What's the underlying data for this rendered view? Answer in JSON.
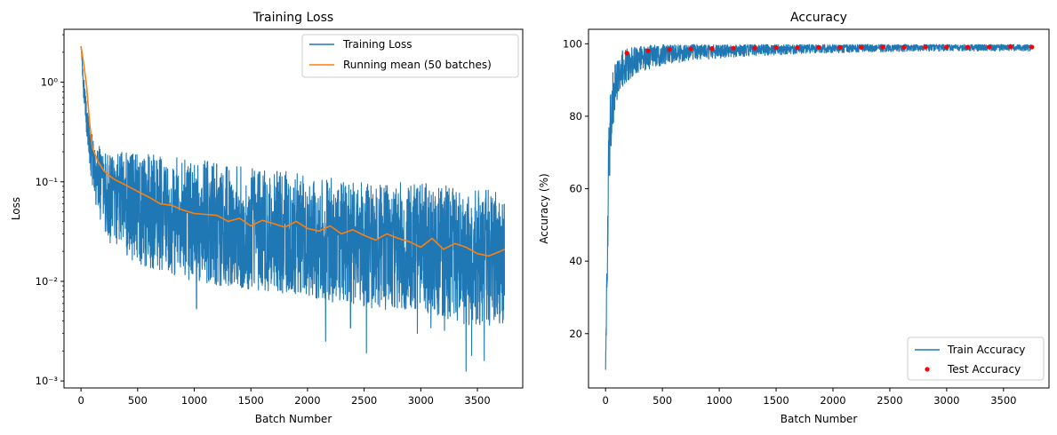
{
  "chart_data": [
    {
      "type": "line",
      "title": "Training Loss",
      "xlabel": "Batch Number",
      "ylabel": "Loss",
      "xlim": [
        -150,
        3900
      ],
      "ylim": [
        0.00085,
        3.4
      ],
      "yscale": "log",
      "grid": false,
      "legend_position": "top-right",
      "x_ticks": [
        0,
        500,
        1000,
        1500,
        2000,
        2500,
        3000,
        3500
      ],
      "x_tick_labels": [
        "0",
        "500",
        "1000",
        "1500",
        "2000",
        "2500",
        "3000",
        "3500"
      ],
      "y_ticks": [
        0.001,
        0.01,
        0.1,
        1
      ],
      "y_tick_labels": [
        "10⁻³",
        "10⁻²",
        "10⁻¹",
        "10⁰"
      ],
      "colors": {
        "training": "#1f77b4",
        "running": "#ff7f0e"
      },
      "series": [
        {
          "name": "Training Loss",
          "kind": "noisy-band",
          "x": [
            0,
            20,
            50,
            80,
            120,
            200,
            300,
            500,
            750,
            1000,
            1250,
            1500,
            1750,
            2000,
            2250,
            2500,
            2750,
            3000,
            3250,
            3500,
            3740
          ],
          "center": [
            2.3,
            1.0,
            0.45,
            0.25,
            0.15,
            0.1,
            0.08,
            0.065,
            0.055,
            0.045,
            0.04,
            0.037,
            0.034,
            0.032,
            0.029,
            0.027,
            0.026,
            0.024,
            0.022,
            0.021,
            0.02
          ],
          "upper": [
            2.3,
            1.2,
            0.6,
            0.35,
            0.26,
            0.22,
            0.2,
            0.2,
            0.18,
            0.17,
            0.15,
            0.14,
            0.13,
            0.12,
            0.11,
            0.1,
            0.1,
            0.1,
            0.09,
            0.085,
            0.08
          ],
          "lower": [
            2.3,
            0.7,
            0.28,
            0.12,
            0.06,
            0.03,
            0.02,
            0.015,
            0.012,
            0.01,
            0.009,
            0.008,
            0.0075,
            0.007,
            0.006,
            0.0055,
            0.005,
            0.005,
            0.004,
            0.0035,
            0.0035
          ],
          "spikes_down": [
            [
              1020,
              0.0053
            ],
            [
              2160,
              0.0025
            ],
            [
              2380,
              0.0034
            ],
            [
              2520,
              0.0019
            ],
            [
              2970,
              0.003
            ],
            [
              3090,
              0.0034
            ],
            [
              3210,
              0.0032
            ],
            [
              3400,
              0.00125
            ],
            [
              3450,
              0.0018
            ],
            [
              3560,
              0.0016
            ]
          ]
        },
        {
          "name": "Running mean (50 batches)",
          "kind": "line",
          "x": [
            0,
            25,
            50,
            75,
            100,
            150,
            200,
            250,
            300,
            400,
            500,
            600,
            700,
            800,
            900,
            1000,
            1100,
            1200,
            1300,
            1400,
            1500,
            1600,
            1700,
            1800,
            1900,
            2000,
            2100,
            2200,
            2300,
            2400,
            2500,
            2600,
            2700,
            2800,
            2900,
            3000,
            3100,
            3200,
            3300,
            3400,
            3500,
            3600,
            3700,
            3740
          ],
          "y": [
            2.3,
            1.5,
            0.9,
            0.4,
            0.22,
            0.16,
            0.13,
            0.115,
            0.105,
            0.092,
            0.08,
            0.07,
            0.06,
            0.058,
            0.052,
            0.048,
            0.047,
            0.046,
            0.04,
            0.043,
            0.036,
            0.041,
            0.038,
            0.035,
            0.04,
            0.034,
            0.032,
            0.036,
            0.03,
            0.033,
            0.029,
            0.026,
            0.03,
            0.027,
            0.025,
            0.022,
            0.027,
            0.021,
            0.024,
            0.022,
            0.019,
            0.018,
            0.02,
            0.021
          ]
        }
      ]
    },
    {
      "type": "line",
      "title": "Accuracy",
      "xlabel": "Batch Number",
      "ylabel": "Accuracy (%)",
      "xlim": [
        -150,
        3900
      ],
      "ylim": [
        5,
        104
      ],
      "grid": false,
      "legend_position": "bottom-right",
      "x_ticks": [
        0,
        500,
        1000,
        1500,
        2000,
        2500,
        3000,
        3500
      ],
      "x_tick_labels": [
        "0",
        "500",
        "1000",
        "1500",
        "2000",
        "2500",
        "3000",
        "3500"
      ],
      "y_ticks": [
        20,
        40,
        60,
        80,
        100
      ],
      "y_tick_labels": [
        "20",
        "40",
        "60",
        "80",
        "100"
      ],
      "colors": {
        "train": "#1f77b4",
        "test": "#ff0000"
      },
      "series": [
        {
          "name": "Train Accuracy",
          "kind": "noisy-band",
          "x": [
            0,
            10,
            20,
            30,
            50,
            80,
            120,
            160,
            200,
            300,
            500,
            800,
            1200,
            1600,
            2000,
            2500,
            3000,
            3500,
            3740
          ],
          "center": [
            10,
            30,
            55,
            70,
            82,
            88,
            92,
            94,
            96,
            97,
            97.5,
            98.2,
            98.6,
            98.9,
            99,
            99.1,
            99.2,
            99.2,
            99.1
          ],
          "upper": [
            10,
            45,
            68,
            80,
            90,
            95,
            97,
            98.5,
            99,
            99.5,
            99.8,
            99.8,
            99.8,
            99.8,
            99.8,
            99.8,
            99.8,
            99.8,
            99.8
          ],
          "lower": [
            10,
            20,
            40,
            58,
            72,
            80,
            86,
            88,
            90,
            92,
            94,
            95.5,
            96.5,
            97,
            97.5,
            97.8,
            98,
            98,
            98
          ]
        },
        {
          "name": "Test Accuracy",
          "kind": "scatter",
          "x": [
            187,
            374,
            562,
            749,
            937,
            1124,
            1312,
            1499,
            1687,
            1874,
            2062,
            2249,
            2437,
            2624,
            2812,
            2999,
            3187,
            3374,
            3562,
            3749
          ],
          "y": [
            97.4,
            98.1,
            98.4,
            98.6,
            98.7,
            98.8,
            98.8,
            98.9,
            98.9,
            99.0,
            99.0,
            99.0,
            99.1,
            99.0,
            99.1,
            99.1,
            99.1,
            99.1,
            99.2,
            99.1
          ]
        }
      ]
    }
  ]
}
